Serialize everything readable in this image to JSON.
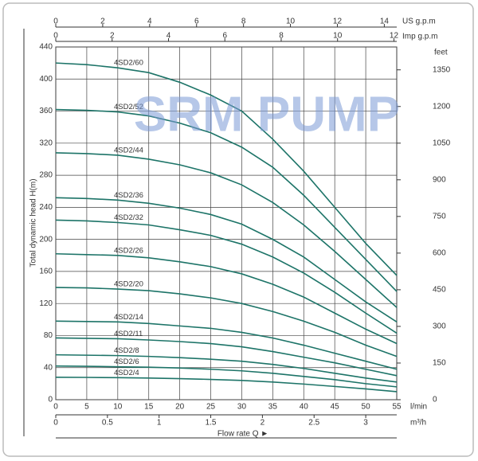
{
  "chart_data": {
    "type": "line",
    "watermark": "SRM PUMP",
    "ylabel": "Total dynamic head H(m)",
    "xlabel": "l/min",
    "x2label": "m³/h",
    "x3label": "US g.p.m",
    "x4label": "Imp g.p.m",
    "y2label": "feet",
    "flow_label": "Flow  rate Q ►",
    "grid": true,
    "x": [
      0,
      5,
      10,
      15,
      20,
      25,
      30,
      35,
      40,
      45,
      50,
      55
    ],
    "xlim": [
      0,
      55
    ],
    "xticks": [
      0,
      5,
      10,
      15,
      20,
      25,
      30,
      35,
      40,
      45,
      50,
      55
    ],
    "x2lim": [
      0,
      3.3
    ],
    "x2ticks": [
      0,
      0.5,
      1,
      1.5,
      2,
      2.5,
      3
    ],
    "x3lim": [
      0,
      14.53
    ],
    "x3ticks": [
      0,
      2,
      4,
      6,
      8,
      10,
      12,
      14
    ],
    "x4lim": [
      0,
      12.1
    ],
    "x4ticks": [
      0,
      2,
      4,
      6,
      8,
      10,
      12
    ],
    "ylim": [
      0,
      440
    ],
    "yticks": [
      0,
      40,
      80,
      120,
      160,
      200,
      240,
      280,
      320,
      360,
      400,
      440
    ],
    "y2lim": [
      0,
      1443.6
    ],
    "y2ticks": [
      0,
      150,
      300,
      450,
      600,
      750,
      900,
      1050,
      1200,
      1350
    ],
    "series": [
      {
        "name": "4SD2/60",
        "color": "#1d7468",
        "values": [
          420,
          418,
          414,
          408,
          396,
          380,
          360,
          325,
          285,
          240,
          195,
          155
        ]
      },
      {
        "name": "4SD2/52",
        "color": "#1d7468",
        "values": [
          362,
          361,
          359,
          354,
          345,
          333,
          315,
          290,
          255,
          215,
          175,
          135
        ]
      },
      {
        "name": "4SD2/44",
        "color": "#1d7468",
        "values": [
          308,
          307,
          305,
          300,
          293,
          283,
          268,
          246,
          218,
          185,
          150,
          115
        ]
      },
      {
        "name": "4SD2/36",
        "color": "#1d7468",
        "values": [
          252,
          251,
          249,
          245,
          239,
          231,
          219,
          200,
          178,
          150,
          122,
          97
        ]
      },
      {
        "name": "4SD2/32",
        "color": "#1d7468",
        "values": [
          224,
          223,
          221,
          218,
          212,
          205,
          194,
          178,
          158,
          134,
          108,
          83
        ]
      },
      {
        "name": "4SD2/26",
        "color": "#1d7468",
        "values": [
          182,
          181,
          180,
          177,
          172,
          166,
          157,
          144,
          128,
          108,
          88,
          70
        ]
      },
      {
        "name": "4SD2/20",
        "color": "#1d7468",
        "values": [
          140,
          139.5,
          138,
          136,
          132,
          127,
          120,
          110,
          98,
          84,
          68,
          54
        ]
      },
      {
        "name": "4SD2/14",
        "color": "#1d7468",
        "values": [
          98,
          97.5,
          97,
          95,
          92,
          89,
          84,
          77,
          68,
          58,
          48,
          38
        ]
      },
      {
        "name": "4SD2/11",
        "color": "#1d7468",
        "values": [
          77,
          76.5,
          76,
          74.5,
          72.5,
          70,
          66,
          60,
          53,
          46,
          38,
          30
        ]
      },
      {
        "name": "4SD2/8",
        "color": "#1d7468",
        "values": [
          56,
          55.5,
          55,
          54,
          52.5,
          50.5,
          48,
          44,
          39,
          33,
          27,
          22
        ]
      },
      {
        "name": "4SD2/6",
        "color": "#1d7468",
        "values": [
          42,
          41.7,
          41,
          40.5,
          39.5,
          38,
          36,
          33,
          29,
          25,
          20,
          16
        ]
      },
      {
        "name": "4SD2/4",
        "color": "#1d7468",
        "values": [
          28,
          27.8,
          27.5,
          27,
          26.3,
          25.3,
          24,
          22,
          19.5,
          16.5,
          13.5,
          10
        ]
      }
    ]
  }
}
